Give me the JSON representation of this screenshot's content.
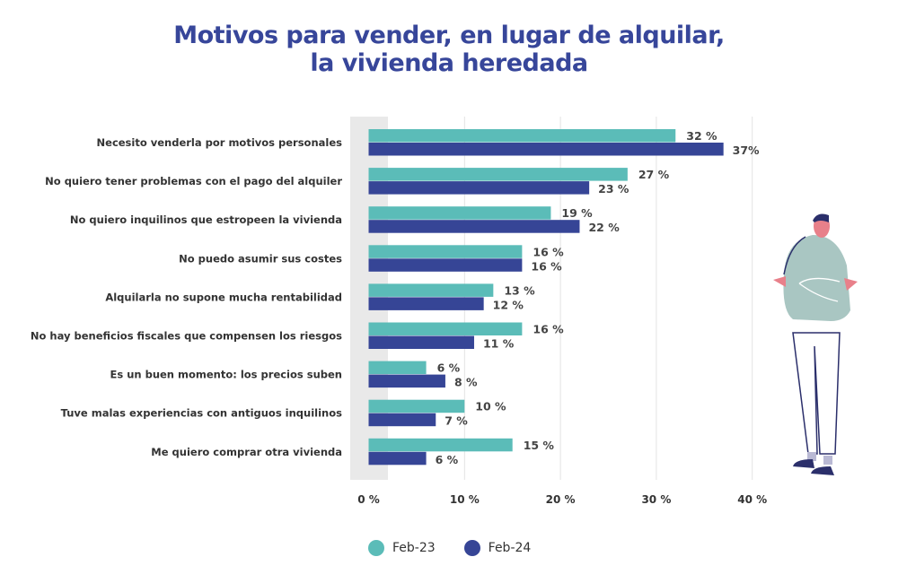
{
  "title_line1": "Motivos para vender, en lugar de alquilar,",
  "title_line2": "la vivienda heredada",
  "chart_data": {
    "type": "bar",
    "orientation": "horizontal",
    "title": "Motivos para vender, en lugar de alquilar, la vivienda heredada",
    "categories": [
      "Necesito venderla por motivos personales",
      "No quiero tener problemas con el pago del alquiler",
      "No quiero inquilinos que estropeen la vivienda",
      "No puedo asumir sus costes",
      "Alquilarla no supone mucha rentabilidad",
      "No hay beneficios fiscales que compensen los riesgos",
      "Es un buen momento: los precios suben",
      "Tuve malas experiencias con antiguos inquilinos",
      "Me quiero comprar otra vivienda"
    ],
    "series": [
      {
        "name": "Feb-23",
        "color": "#5bbcb8",
        "values": [
          32,
          27,
          19,
          16,
          13,
          16,
          6,
          10,
          15
        ],
        "labels": [
          "32 %",
          "27 %",
          "19 %",
          "16 %",
          "13 %",
          "16 %",
          "6 %",
          "10 %",
          "15 %"
        ]
      },
      {
        "name": "Feb-24",
        "color": "#364596",
        "values": [
          37,
          23,
          22,
          16,
          12,
          11,
          8,
          7,
          6
        ],
        "labels": [
          "37%",
          "23 %",
          "22 %",
          "16 %",
          "12 %",
          "11 %",
          "8 %",
          "7 %",
          "6 %"
        ]
      }
    ],
    "xlim": [
      0,
      40
    ],
    "xticks": [
      "0 %",
      "10 %",
      "20 %",
      "30 %",
      "40 %"
    ],
    "grid": true,
    "legend": "bottom"
  }
}
